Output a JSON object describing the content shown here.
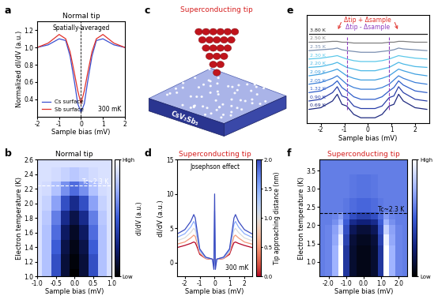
{
  "chart_data": [
    {
      "panel": "a",
      "type": "line",
      "title": "Normal tip",
      "annotations": [
        "Spatially-averaged",
        "300 mK"
      ],
      "x_label": "Sample bias (mV)",
      "y_label": "Normalized dI/dV (a.u.)",
      "x": [
        -2,
        -1.5,
        -1,
        -0.7,
        -0.5,
        -0.3,
        -0.15,
        0,
        0.15,
        0.3,
        0.5,
        0.7,
        1,
        1.5,
        2
      ],
      "series": [
        {
          "name": "Cs surface",
          "color": "#3a4fd0",
          "values": [
            1.0,
            1.03,
            1.1,
            1.08,
            0.9,
            0.6,
            0.35,
            0.25,
            0.35,
            0.6,
            0.9,
            1.08,
            1.1,
            1.03,
            1.0
          ]
        },
        {
          "name": "Sb surface",
          "color": "#e0302a",
          "values": [
            1.0,
            1.05,
            1.15,
            1.1,
            0.95,
            0.7,
            0.5,
            0.35,
            0.5,
            0.7,
            0.95,
            1.1,
            1.15,
            1.05,
            1.0
          ]
        }
      ],
      "vline": 0,
      "xlim": [
        -2,
        2
      ],
      "xticks": [
        -2,
        -1,
        0,
        1,
        2
      ],
      "ylim": [
        0.2,
        1.3
      ],
      "yticks": [
        0.4,
        0.6,
        0.8,
        1.0,
        1.2
      ],
      "legend": "lower left"
    },
    {
      "panel": "b",
      "type": "heatmap",
      "title": "Normal tip",
      "annotation": "Tc~2.3 K",
      "tc_line": 2.25,
      "color": "#ffffff",
      "x_label": "Sample bias (mV)",
      "y_label": "Electron temperature (K)",
      "x": [
        -1.0,
        -0.75,
        -0.5,
        -0.25,
        0,
        0.25,
        0.5,
        0.75,
        1.0
      ],
      "y": [
        1.0,
        1.2,
        1.4,
        1.6,
        1.8,
        2.0,
        2.2,
        2.4,
        2.6
      ],
      "cells": [
        [
          0.9,
          0.8,
          0.45,
          0.12,
          0.0,
          0.12,
          0.45,
          0.8,
          0.9
        ],
        [
          0.9,
          0.8,
          0.45,
          0.12,
          0.02,
          0.12,
          0.45,
          0.8,
          0.9
        ],
        [
          0.9,
          0.8,
          0.5,
          0.15,
          0.05,
          0.15,
          0.5,
          0.8,
          0.9
        ],
        [
          0.9,
          0.8,
          0.55,
          0.2,
          0.08,
          0.2,
          0.55,
          0.8,
          0.9
        ],
        [
          0.9,
          0.82,
          0.6,
          0.3,
          0.15,
          0.3,
          0.6,
          0.82,
          0.9
        ],
        [
          0.9,
          0.85,
          0.7,
          0.45,
          0.3,
          0.45,
          0.7,
          0.85,
          0.9
        ],
        [
          0.9,
          0.88,
          0.8,
          0.65,
          0.55,
          0.65,
          0.8,
          0.88,
          0.9
        ],
        [
          0.9,
          0.9,
          0.88,
          0.85,
          0.82,
          0.85,
          0.88,
          0.9,
          0.9
        ],
        [
          0.9,
          0.9,
          0.9,
          0.9,
          0.9,
          0.9,
          0.9,
          0.9,
          0.9
        ]
      ],
      "xlim": [
        -1,
        1
      ],
      "xticks": [
        -1.0,
        -0.5,
        0.0,
        0.5,
        1.0
      ],
      "ylim": [
        1.0,
        2.6
      ],
      "yticks": [
        1.0,
        1.2,
        1.4,
        1.6,
        1.8,
        2.0,
        2.2,
        2.4,
        2.6
      ],
      "colorbar": {
        "label": "dI/dV (a.u.)",
        "range": [
          0,
          1
        ],
        "ticks": [
          {
            "value": 0,
            "label": "Low"
          },
          {
            "value": 1,
            "label": "High"
          }
        ]
      }
    },
    {
      "panel": "c",
      "type": "diagram",
      "title": "Superconducting tip",
      "material": "CsV₃Sb₅"
    },
    {
      "panel": "d",
      "type": "line",
      "title": "Superconducting tip",
      "annotations": [
        "Josephson effect",
        "300 mK"
      ],
      "x_label": "Sample bias (mV)",
      "y_label": "dI/dV (a.u.)",
      "x": [
        -2.5,
        -2.0,
        -1.6,
        -1.4,
        -1.3,
        -1.2,
        -1.0,
        -0.6,
        -0.3,
        -0.15,
        -0.05,
        0,
        0.05,
        0.15,
        0.3,
        0.6,
        1.0,
        1.2,
        1.3,
        1.4,
        1.6,
        2.0,
        2.5
      ],
      "series": [
        {
          "distance": 0.0,
          "values": [
            2.2,
            2.5,
            2.8,
            3.0,
            2.9,
            2.4,
            1.2,
            0.6,
            0.5,
            0.5,
            0.3,
            1.5,
            0.3,
            0.5,
            0.5,
            0.6,
            1.2,
            2.4,
            2.9,
            3.0,
            2.8,
            2.5,
            2.2
          ]
        },
        {
          "distance": 0.5,
          "values": [
            2.7,
            3.0,
            3.6,
            4.0,
            3.8,
            3.0,
            1.4,
            0.6,
            0.5,
            0.5,
            0.1,
            3.0,
            0.1,
            0.5,
            0.5,
            0.6,
            1.4,
            3.0,
            3.8,
            4.0,
            3.6,
            3.0,
            2.7
          ]
        },
        {
          "distance": 1.0,
          "values": [
            3.2,
            3.6,
            4.4,
            5.0,
            4.7,
            3.7,
            1.6,
            0.7,
            0.6,
            0.5,
            -0.2,
            5.0,
            -0.2,
            0.5,
            0.6,
            0.7,
            1.6,
            3.7,
            4.7,
            5.0,
            4.4,
            3.6,
            3.2
          ]
        },
        {
          "distance": 1.5,
          "values": [
            3.7,
            4.2,
            5.2,
            6.0,
            5.6,
            4.3,
            1.8,
            0.7,
            0.6,
            0.5,
            -0.5,
            7.5,
            -0.5,
            0.5,
            0.6,
            0.7,
            1.8,
            4.3,
            5.6,
            6.0,
            5.2,
            4.2,
            3.7
          ]
        },
        {
          "distance": 2.0,
          "values": [
            4.2,
            4.8,
            6.0,
            7.0,
            6.5,
            5.0,
            2.0,
            0.8,
            0.6,
            0.5,
            -1.0,
            10.0,
            -1.0,
            0.5,
            0.6,
            0.8,
            2.0,
            5.0,
            6.5,
            7.0,
            6.0,
            4.8,
            4.2
          ]
        }
      ],
      "xlim": [
        -2.5,
        2.5
      ],
      "xticks": [
        -2,
        -1,
        0,
        1,
        2
      ],
      "ylim": [
        -2,
        15
      ],
      "yticks": [
        0,
        5,
        10,
        15
      ],
      "colorbar": {
        "label": "Tip approaching distance (nm)",
        "range": [
          0,
          2.0
        ],
        "ticks": [
          0.0,
          0.5,
          1.0,
          1.5,
          2.0
        ]
      }
    },
    {
      "panel": "e",
      "type": "line",
      "x_label": "Sample bias (mV)",
      "x": [
        -2.5,
        -2.0,
        -1.5,
        -1.3,
        -1.1,
        -0.9,
        -0.6,
        -0.3,
        0,
        0.3,
        0.6,
        0.9,
        1.1,
        1.3,
        1.5,
        2.0,
        2.5
      ],
      "series": [
        {
          "name": "0.69 K",
          "color": "#1f2a80",
          "values": [
            1.0,
            1.1,
            1.5,
            1.9,
            1.3,
            1.2,
            0.7,
            0.5,
            0.5,
            0.5,
            0.7,
            1.2,
            1.3,
            1.9,
            1.5,
            1.1,
            1.0
          ]
        },
        {
          "name": "0.90 K",
          "color": "#2a3fa8",
          "values": [
            1.5,
            1.6,
            2.0,
            2.35,
            1.8,
            1.7,
            1.2,
            1.05,
            1.05,
            1.05,
            1.2,
            1.7,
            1.8,
            2.35,
            2.0,
            1.6,
            1.5
          ]
        },
        {
          "name": "1.32 K",
          "color": "#2f5ec9",
          "values": [
            2.0,
            2.1,
            2.45,
            2.7,
            2.3,
            2.1,
            1.75,
            1.6,
            1.6,
            1.6,
            1.75,
            2.1,
            2.3,
            2.7,
            2.45,
            2.1,
            2.0
          ]
        },
        {
          "name": "2.05 K",
          "color": "#3b7fd8",
          "values": [
            2.5,
            2.6,
            2.85,
            3.0,
            2.75,
            2.5,
            2.3,
            2.2,
            2.2,
            2.2,
            2.3,
            2.5,
            2.75,
            3.0,
            2.85,
            2.6,
            2.5
          ]
        },
        {
          "name": "2.09 K",
          "color": "#3fa0e0",
          "values": [
            3.0,
            3.1,
            3.3,
            3.4,
            3.2,
            3.0,
            2.85,
            2.75,
            2.75,
            2.75,
            2.85,
            3.0,
            3.2,
            3.4,
            3.3,
            3.1,
            3.0
          ]
        },
        {
          "name": "2.20 K",
          "color": "#4bb8e6",
          "values": [
            3.5,
            3.55,
            3.7,
            3.8,
            3.65,
            3.5,
            3.4,
            3.3,
            3.3,
            3.3,
            3.4,
            3.5,
            3.65,
            3.8,
            3.7,
            3.55,
            3.5
          ]
        },
        {
          "name": "2.30 K",
          "color": "#5cc8ea",
          "values": [
            4.0,
            4.05,
            4.15,
            4.2,
            4.1,
            4.0,
            3.9,
            3.85,
            3.85,
            3.85,
            3.9,
            4.0,
            4.1,
            4.2,
            4.15,
            4.05,
            4.0
          ]
        },
        {
          "name": "2.35 K",
          "color": "#7a8fb0",
          "values": [
            4.5,
            4.55,
            4.6,
            4.65,
            4.55,
            4.5,
            4.45,
            4.4,
            4.4,
            4.4,
            4.45,
            4.5,
            4.55,
            4.65,
            4.6,
            4.55,
            4.5
          ]
        },
        {
          "name": "2.50 K",
          "color": "#808080",
          "values": [
            5.0,
            5.0,
            5.05,
            5.05,
            5.0,
            5.0,
            4.95,
            4.95,
            4.95,
            4.95,
            4.95,
            5.0,
            5.0,
            5.05,
            5.05,
            5.0,
            5.0
          ]
        },
        {
          "name": "3.80 K",
          "color": "#202020",
          "values": [
            5.5,
            5.5,
            5.5,
            5.5,
            5.5,
            5.5,
            5.5,
            5.5,
            5.5,
            5.5,
            5.5,
            5.5,
            5.5,
            5.5,
            5.5,
            5.5,
            5.5
          ]
        }
      ],
      "arrow_labels": [
        {
          "text": "Δtip + Δsample",
          "x": [
            -1.3,
            1.3
          ],
          "color": "#e0302a"
        },
        {
          "text": "Δtip - Δsample",
          "x": [
            -0.9,
            0.9
          ],
          "color": "#9040c0"
        }
      ],
      "xlim": [
        -2.6,
        2.6
      ],
      "xticks": [
        -2,
        -1,
        0,
        1,
        2
      ],
      "ylim": [
        0.2,
        6.6
      ],
      "tick_labels": "x"
    },
    {
      "panel": "f",
      "type": "heatmap",
      "title": "Superconducting tip",
      "annotation": "Tc~2.3 K",
      "tc_line": 2.33,
      "color": "#000000",
      "x_label": "Sample bias (mV)",
      "y_label": "Electron temperature (K)",
      "x": [
        -2.4,
        -2.0,
        -1.6,
        -1.3,
        -1.0,
        -0.6,
        -0.2,
        0.2,
        0.6,
        1.0,
        1.3,
        1.6,
        2.0,
        2.4
      ],
      "y": [
        0.7,
        1.0,
        1.3,
        1.6,
        1.9,
        2.1,
        2.2,
        2.5,
        3.0,
        3.8
      ],
      "cells": [
        [
          0.6,
          0.62,
          0.75,
          1.0,
          0.35,
          0.1,
          0.05,
          0.05,
          0.1,
          0.35,
          1.0,
          0.75,
          0.62,
          0.6
        ],
        [
          0.6,
          0.62,
          0.75,
          1.0,
          0.35,
          0.1,
          0.05,
          0.05,
          0.1,
          0.35,
          1.0,
          0.75,
          0.62,
          0.6
        ],
        [
          0.6,
          0.62,
          0.75,
          1.0,
          0.35,
          0.1,
          0.05,
          0.05,
          0.1,
          0.35,
          1.0,
          0.75,
          0.62,
          0.6
        ],
        [
          0.6,
          0.62,
          0.72,
          0.95,
          0.4,
          0.12,
          0.07,
          0.07,
          0.12,
          0.4,
          0.95,
          0.72,
          0.62,
          0.6
        ],
        [
          0.6,
          0.62,
          0.7,
          0.85,
          0.45,
          0.18,
          0.12,
          0.12,
          0.18,
          0.45,
          0.85,
          0.7,
          0.62,
          0.6
        ],
        [
          0.6,
          0.6,
          0.65,
          0.75,
          0.5,
          0.3,
          0.25,
          0.25,
          0.3,
          0.5,
          0.75,
          0.65,
          0.6,
          0.6
        ],
        [
          0.6,
          0.6,
          0.62,
          0.68,
          0.55,
          0.45,
          0.4,
          0.4,
          0.45,
          0.55,
          0.68,
          0.62,
          0.6,
          0.6
        ],
        [
          0.6,
          0.6,
          0.6,
          0.6,
          0.58,
          0.55,
          0.53,
          0.53,
          0.55,
          0.58,
          0.6,
          0.6,
          0.6,
          0.6
        ],
        [
          0.6,
          0.6,
          0.6,
          0.6,
          0.6,
          0.58,
          0.57,
          0.57,
          0.58,
          0.6,
          0.6,
          0.6,
          0.6,
          0.6
        ],
        [
          0.6,
          0.6,
          0.6,
          0.6,
          0.6,
          0.6,
          0.6,
          0.6,
          0.6,
          0.6,
          0.6,
          0.6,
          0.6,
          0.6
        ]
      ],
      "xlim": [
        -2.5,
        2.5
      ],
      "xticks": [
        -2.0,
        -1.0,
        0.0,
        1.0,
        2.0
      ],
      "ylim": [
        0.6,
        3.8
      ],
      "yticks": [
        1.0,
        1.5,
        2.0,
        2.5,
        3.0,
        3.5
      ],
      "colorbar": {
        "range": [
          0,
          1
        ],
        "ticks": [
          {
            "value": 0,
            "label": "Low"
          },
          {
            "value": 1,
            "label": "High"
          }
        ]
      }
    }
  ]
}
